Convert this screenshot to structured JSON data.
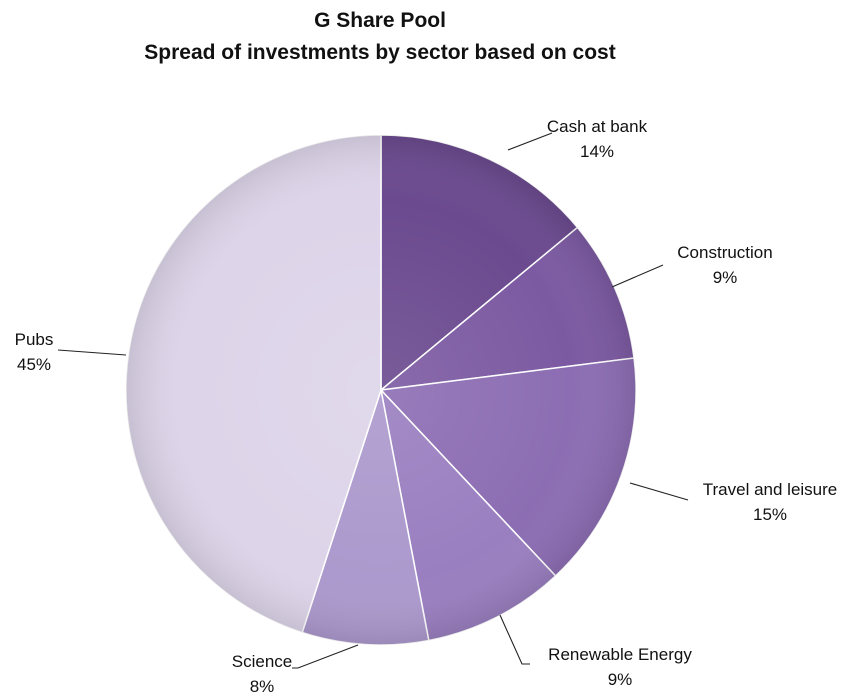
{
  "chart_data": {
    "type": "pie",
    "title": "G Share Pool",
    "subtitle": "Spread of investments by sector based on cost",
    "slices": [
      {
        "label": "Cash at bank",
        "value": 14,
        "display": "14%",
        "color": "#6b4a8f"
      },
      {
        "label": "Construction",
        "value": 9,
        "display": "9%",
        "color": "#7c5aa2"
      },
      {
        "label": "Travel and leisure",
        "value": 15,
        "display": "15%",
        "color": "#8c6db3"
      },
      {
        "label": "Renewable Energy",
        "value": 9,
        "display": "9%",
        "color": "#9a7fc0"
      },
      {
        "label": "Science",
        "value": 8,
        "display": "8%",
        "color": "#ac99cd"
      },
      {
        "label": "Pubs",
        "value": 45,
        "display": "45%",
        "color": "#ddd4e9"
      }
    ],
    "legend": "none",
    "start": "top",
    "direction": "clockwise",
    "labels": "outside-with-leader-lines"
  }
}
